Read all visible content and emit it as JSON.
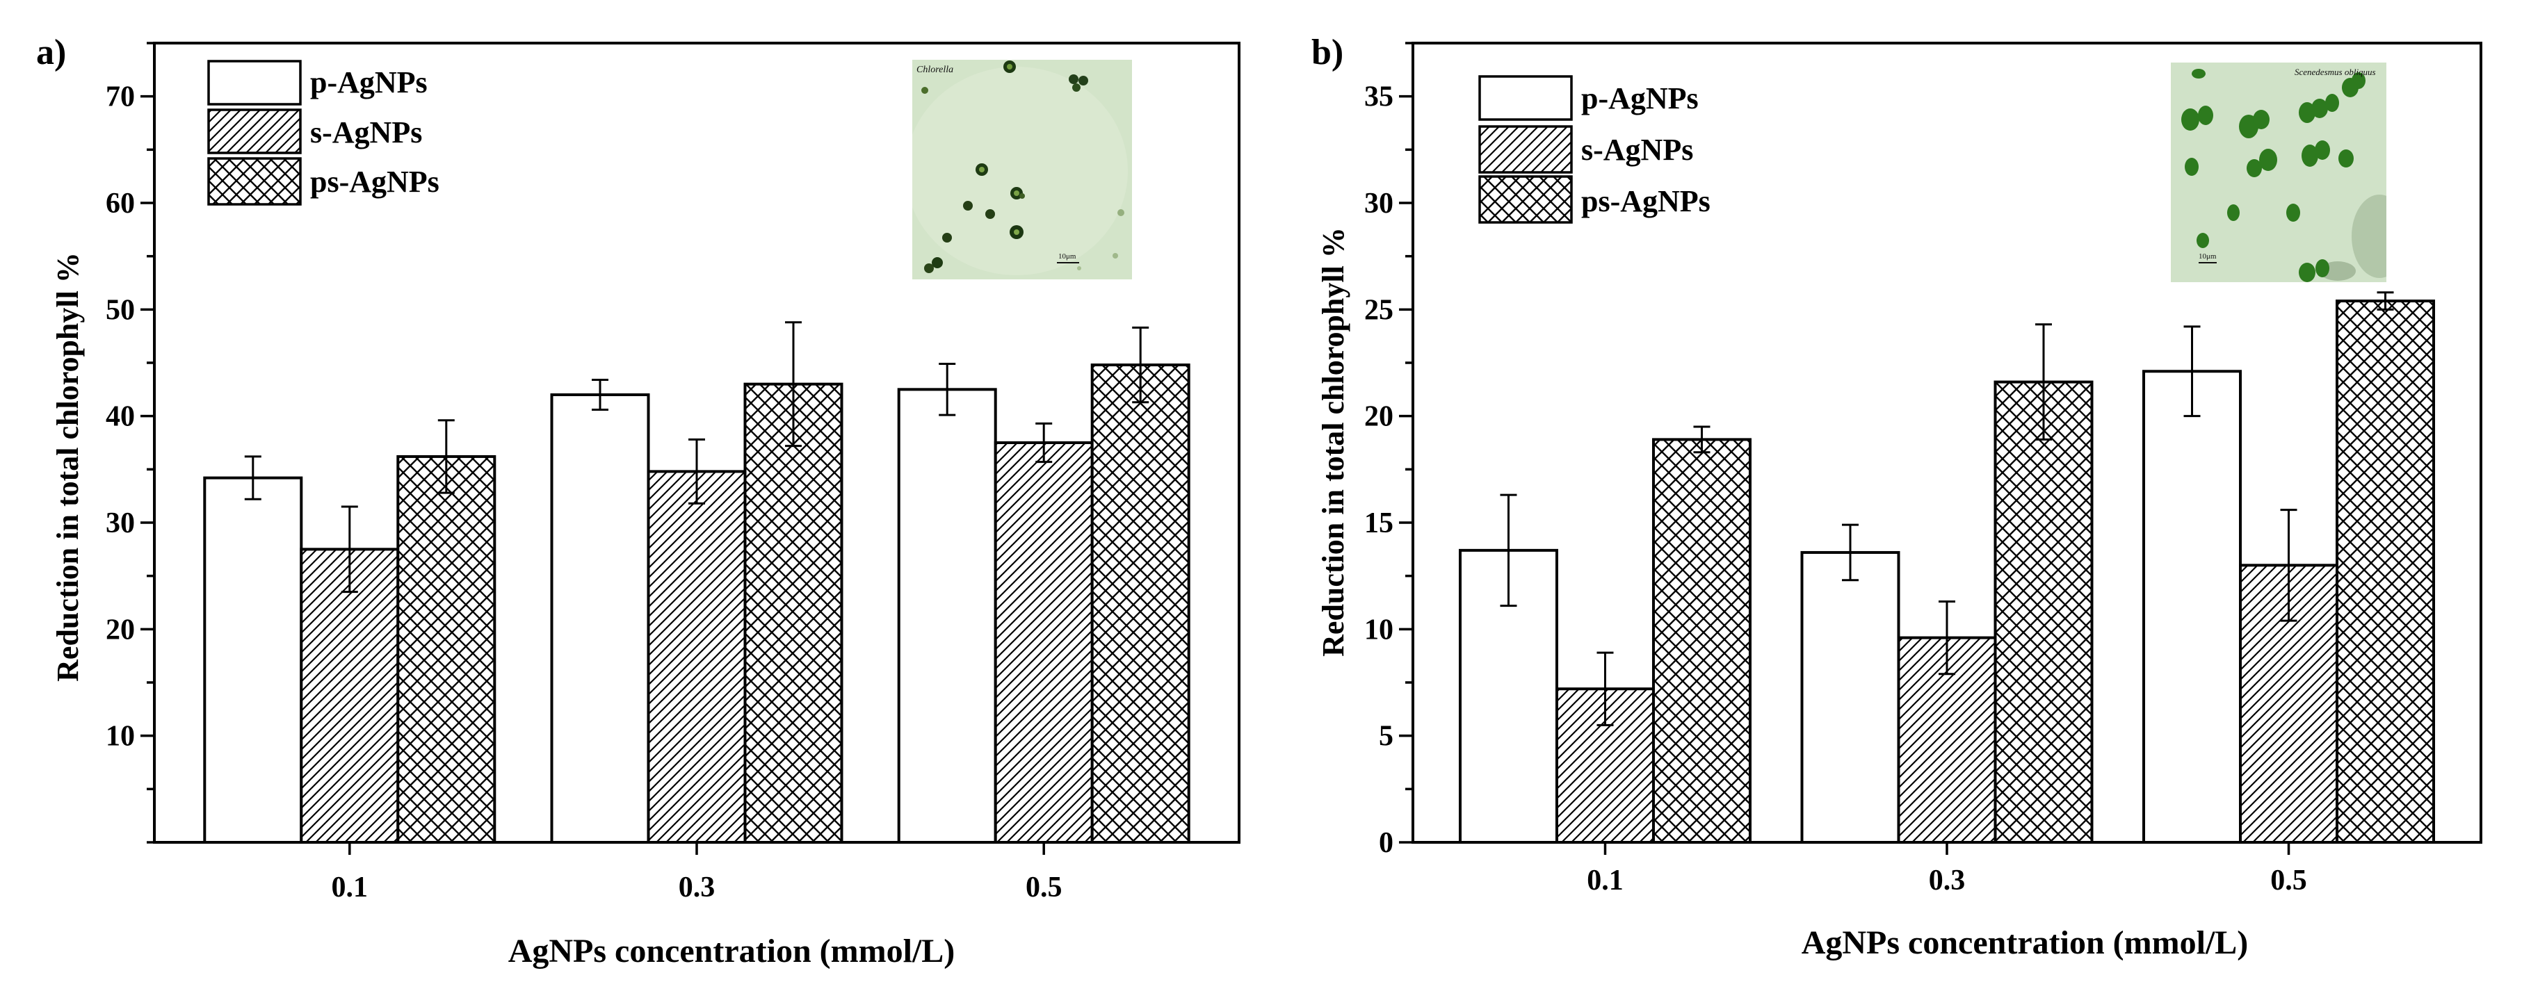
{
  "chart_data": [
    {
      "type": "bar",
      "panel_label": "a)",
      "title": "",
      "xlabel": "AgNPs concentration (mmol/L)",
      "ylabel": "Reduction in total chlorophyll %",
      "categories": [
        "0.1",
        "0.3",
        "0.5"
      ],
      "ylim": [
        0,
        75
      ],
      "yticks": [
        10,
        20,
        30,
        40,
        50,
        60,
        70
      ],
      "series": [
        {
          "name": "p-AgNPs",
          "pattern": "plain",
          "values": [
            34.2,
            42.0,
            42.5
          ],
          "errors": [
            2.0,
            1.4,
            2.4
          ]
        },
        {
          "name": "s-AgNPs",
          "pattern": "diagonal",
          "values": [
            27.5,
            34.8,
            37.5
          ],
          "errors": [
            4.0,
            3.0,
            1.8
          ]
        },
        {
          "name": "ps-AgNPs",
          "pattern": "crosshatch",
          "values": [
            36.2,
            43.0,
            44.8
          ],
          "errors": [
            3.4,
            5.8,
            3.5
          ]
        }
      ],
      "legend_position": "top-left",
      "inset": {
        "label": "Chlorella",
        "scale_bar": "10μm",
        "position": "top-right"
      }
    },
    {
      "type": "bar",
      "panel_label": "b)",
      "title": "",
      "xlabel": "AgNPs concentration (mmol/L)",
      "ylabel": "Reduction in total chlorophyll %",
      "categories": [
        "0.1",
        "0.3",
        "0.5"
      ],
      "ylim": [
        0,
        37.5
      ],
      "yticks": [
        0,
        5,
        10,
        15,
        20,
        25,
        30,
        35
      ],
      "series": [
        {
          "name": "p-AgNPs",
          "pattern": "plain",
          "values": [
            13.7,
            13.6,
            22.1
          ],
          "errors": [
            2.6,
            1.3,
            2.1
          ]
        },
        {
          "name": "s-AgNPs",
          "pattern": "diagonal",
          "values": [
            7.2,
            9.6,
            13.0
          ],
          "errors": [
            1.7,
            1.7,
            2.6
          ]
        },
        {
          "name": "ps-AgNPs",
          "pattern": "crosshatch",
          "values": [
            18.9,
            21.6,
            25.4
          ],
          "errors": [
            0.6,
            2.7,
            0.4
          ]
        }
      ],
      "legend_position": "top-left",
      "inset": {
        "label": "Scenedesmus obliquus",
        "scale_bar": "10μm",
        "position": "top-right"
      }
    }
  ]
}
